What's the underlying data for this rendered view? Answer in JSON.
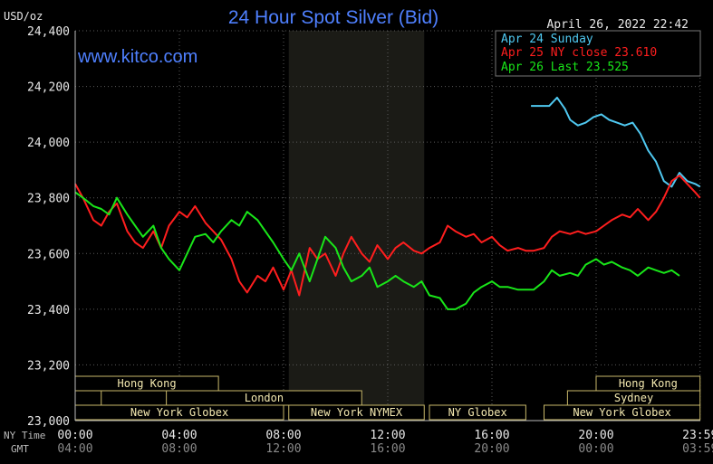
{
  "header": {
    "unit": "USD/oz",
    "title": "24 Hour Spot Silver (Bid)",
    "datetime": "April 26, 2022 22:42",
    "watermark": "www.kitco.com"
  },
  "legend": [
    {
      "label": "Apr 24 Sunday",
      "color": "#4fc8f0"
    },
    {
      "label": "Apr 25 NY close 23.610",
      "color": "#ff1e1e"
    },
    {
      "label": "Apr 26 Last 23.525",
      "color": "#19e619"
    }
  ],
  "time_rows": {
    "ny_label": "NY Time",
    "gmt_label": "GMT",
    "ny_ticks": [
      "00:00",
      "04:00",
      "08:00",
      "12:00",
      "16:00",
      "20:00",
      "23:59"
    ],
    "gmt_ticks": [
      "04:00",
      "08:00",
      "12:00",
      "16:00",
      "20:00",
      "00:00",
      "03:59"
    ]
  },
  "sessions": [
    {
      "label": "Hong Kong",
      "row": 0,
      "x0": 0,
      "x1": 5.5
    },
    {
      "label": "",
      "row": 1,
      "x0": 0,
      "x1": 1.0
    },
    {
      "label": "London",
      "row": 1,
      "x0": 3.5,
      "x1": 11.0
    },
    {
      "label": "New York Globex",
      "row": 2,
      "x0": 0,
      "x1": 8.0
    },
    {
      "label": "New York NYMEX",
      "row": 2,
      "x0": 8.2,
      "x1": 13.4
    },
    {
      "label": "NY Globex",
      "row": 2,
      "x0": 13.6,
      "x1": 17.3
    },
    {
      "label": "Hong Kong",
      "row": 0,
      "x0": 20.0,
      "x1": 23.99
    },
    {
      "label": "Sydney",
      "row": 1,
      "x0": 18.9,
      "x1": 23.99
    },
    {
      "label": "New York Globex",
      "row": 2,
      "x0": 18.0,
      "x1": 23.99
    }
  ],
  "chart_data": {
    "type": "line",
    "title": "24 Hour Spot Silver (Bid)",
    "ylabel": "USD/oz",
    "xlabel": "NY Time / GMT",
    "x_unit": "hours (NY time)",
    "xlim": [
      0,
      24
    ],
    "ylim": [
      23.0,
      24.4
    ],
    "yticks": [
      23.0,
      23.2,
      23.4,
      23.6,
      23.8,
      24.0,
      24.2,
      24.4
    ],
    "ytick_labels": [
      "23,000",
      "23,200",
      "23,400",
      "23,600",
      "23,800",
      "24,000",
      "24,200",
      "24,400"
    ],
    "shaded_region": [
      8.2,
      13.4
    ],
    "series": [
      {
        "name": "Apr 24 Sunday",
        "color": "#4fc8f0",
        "x": [
          17.5,
          18.2,
          18.5,
          18.8,
          19.0,
          19.3,
          19.6,
          19.9,
          20.2,
          20.5,
          20.8,
          21.1,
          21.4,
          21.7,
          22.0,
          22.3,
          22.6,
          22.9,
          23.2,
          23.5,
          23.8,
          23.99
        ],
        "y": [
          24.13,
          24.13,
          24.16,
          24.12,
          24.08,
          24.06,
          24.07,
          24.09,
          24.1,
          24.08,
          24.07,
          24.06,
          24.07,
          24.03,
          23.97,
          23.93,
          23.86,
          23.84,
          23.89,
          23.86,
          23.85,
          23.84
        ]
      },
      {
        "name": "Apr 25 NY close 23.610",
        "color": "#ff1e1e",
        "x": [
          0,
          0.3,
          0.7,
          1.0,
          1.3,
          1.6,
          2.0,
          2.3,
          2.6,
          3.0,
          3.3,
          3.6,
          4.0,
          4.3,
          4.6,
          5.0,
          5.3,
          5.6,
          6.0,
          6.3,
          6.6,
          7.0,
          7.3,
          7.6,
          8.0,
          8.3,
          8.6,
          9.0,
          9.3,
          9.6,
          10.0,
          10.3,
          10.6,
          11.0,
          11.3,
          11.6,
          12.0,
          12.3,
          12.6,
          13.0,
          13.3,
          13.6,
          14.0,
          14.3,
          14.6,
          15.0,
          15.3,
          15.6,
          16.0,
          16.3,
          16.6,
          17.0,
          17.3,
          17.6,
          18.0,
          18.3,
          18.6,
          19.0,
          19.3,
          19.6,
          20.0,
          20.3,
          20.6,
          21.0,
          21.3,
          21.6,
          22.0,
          22.3,
          22.6,
          22.9,
          23.2,
          23.5,
          23.8,
          23.99
        ],
        "y": [
          23.85,
          23.8,
          23.72,
          23.7,
          23.75,
          23.78,
          23.68,
          23.64,
          23.62,
          23.68,
          23.62,
          23.7,
          23.75,
          23.73,
          23.77,
          23.71,
          23.68,
          23.65,
          23.58,
          23.5,
          23.46,
          23.52,
          23.5,
          23.55,
          23.47,
          23.54,
          23.45,
          23.62,
          23.58,
          23.6,
          23.52,
          23.6,
          23.66,
          23.6,
          23.57,
          23.63,
          23.58,
          23.62,
          23.64,
          23.61,
          23.6,
          23.62,
          23.64,
          23.7,
          23.68,
          23.66,
          23.67,
          23.64,
          23.66,
          23.63,
          23.61,
          23.62,
          23.61,
          23.61,
          23.62,
          23.66,
          23.68,
          23.67,
          23.68,
          23.67,
          23.68,
          23.7,
          23.72,
          23.74,
          23.73,
          23.76,
          23.72,
          23.75,
          23.8,
          23.86,
          23.88,
          23.85,
          23.82,
          23.8
        ]
      },
      {
        "name": "Apr 26 Last 23.525",
        "color": "#19e619",
        "x": [
          0,
          0.3,
          0.7,
          1.0,
          1.3,
          1.6,
          2.0,
          2.3,
          2.6,
          3.0,
          3.3,
          3.6,
          4.0,
          4.3,
          4.6,
          5.0,
          5.3,
          5.6,
          6.0,
          6.3,
          6.6,
          7.0,
          7.3,
          7.6,
          8.0,
          8.3,
          8.6,
          9.0,
          9.3,
          9.6,
          10.0,
          10.3,
          10.6,
          11.0,
          11.3,
          11.6,
          12.0,
          12.3,
          12.6,
          13.0,
          13.3,
          13.6,
          14.0,
          14.3,
          14.6,
          15.0,
          15.3,
          15.6,
          16.0,
          16.3,
          16.6,
          17.0,
          17.3,
          17.6,
          18.0,
          18.3,
          18.6,
          19.0,
          19.3,
          19.6,
          20.0,
          20.3,
          20.6,
          21.0,
          21.3,
          21.6,
          22.0,
          22.3,
          22.6,
          22.9,
          23.2
        ],
        "y": [
          23.82,
          23.8,
          23.77,
          23.76,
          23.74,
          23.8,
          23.74,
          23.7,
          23.66,
          23.7,
          23.62,
          23.58,
          23.54,
          23.6,
          23.66,
          23.67,
          23.64,
          23.68,
          23.72,
          23.7,
          23.75,
          23.72,
          23.68,
          23.64,
          23.58,
          23.54,
          23.6,
          23.5,
          23.58,
          23.66,
          23.62,
          23.55,
          23.5,
          23.52,
          23.55,
          23.48,
          23.5,
          23.52,
          23.5,
          23.48,
          23.5,
          23.45,
          23.44,
          23.4,
          23.4,
          23.42,
          23.46,
          23.48,
          23.5,
          23.48,
          23.48,
          23.47,
          23.47,
          23.47,
          23.5,
          23.54,
          23.52,
          23.53,
          23.52,
          23.56,
          23.58,
          23.56,
          23.57,
          23.55,
          23.54,
          23.52,
          23.55,
          23.54,
          23.53,
          23.54,
          23.52
        ]
      }
    ]
  }
}
